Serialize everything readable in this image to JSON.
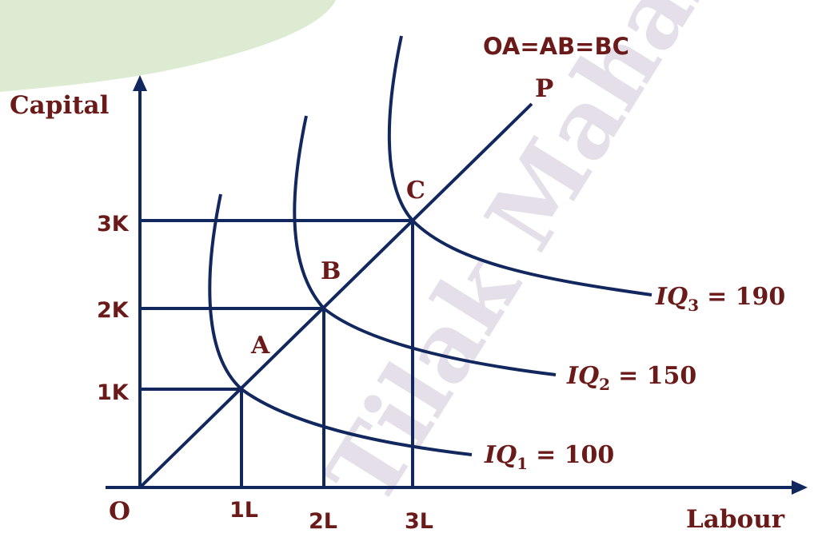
{
  "diagram": {
    "note": "OA=AB=BC",
    "y_axis_label": "Capital",
    "x_axis_label": "Labour",
    "origin_label": "O",
    "ray_label": "P",
    "points": [
      {
        "name": "A",
        "labour": "1L",
        "capital": "1K"
      },
      {
        "name": "B",
        "labour": "2L",
        "capital": "2K"
      },
      {
        "name": "C",
        "labour": "3L",
        "capital": "3K"
      }
    ],
    "isoquants": [
      {
        "var": "IQ",
        "sub": "1",
        "equals": "= 100"
      },
      {
        "var": "IQ",
        "sub": "2",
        "equals": "= 150"
      },
      {
        "var": "IQ",
        "sub": "3",
        "equals": "= 190"
      }
    ],
    "watermark": "Tilak Mahara"
  },
  "colors": {
    "lines": "#12275e",
    "labels": "#6b1a1a",
    "corner_decoration": "#dcebd2",
    "watermark": "#e4dfe8"
  }
}
